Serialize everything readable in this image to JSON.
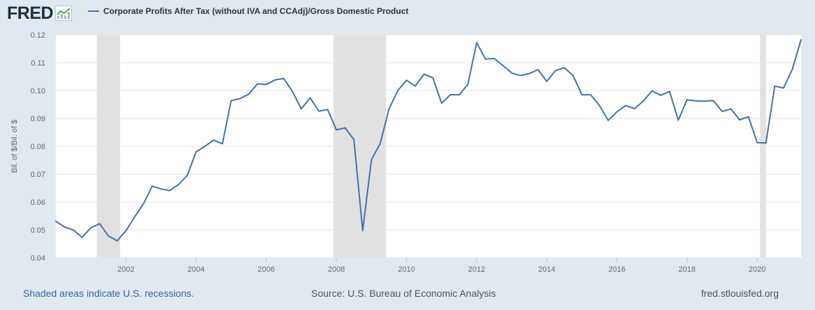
{
  "brand": {
    "logo_text": "FRED"
  },
  "legend": {
    "label": "Corporate Profits After Tax (without IVA and CCAdj)/Gross Domestic Product"
  },
  "footer": {
    "recession_note": "Shaded areas indicate U.S. recessions.",
    "source": "Source: U.S. Bureau of Economic Analysis",
    "site": "fred.stlouisfed.org"
  },
  "colors": {
    "line": "#4572a7",
    "recession": "#e1e1e1",
    "background": "#e1e9f0"
  },
  "chart_data": {
    "type": "line",
    "title": "Corporate Profits After Tax (without IVA and CCAdj)/Gross Domestic Product",
    "ylabel": "Bil. of $/Bil. of $",
    "xlabel": "",
    "xlim": [
      2000.0,
      2021.25
    ],
    "ylim": [
      0.04,
      0.12
    ],
    "yticks": [
      0.04,
      0.05,
      0.06,
      0.07,
      0.08,
      0.09,
      0.1,
      0.11,
      0.12
    ],
    "ytick_labels": [
      "0.04",
      "0.05",
      "0.06",
      "0.07",
      "0.08",
      "0.09",
      "0.10",
      "0.11",
      "0.12"
    ],
    "xticks": [
      2002,
      2004,
      2006,
      2008,
      2010,
      2012,
      2014,
      2016,
      2018,
      2020
    ],
    "xtick_labels": [
      "2002",
      "2004",
      "2006",
      "2008",
      "2010",
      "2012",
      "2014",
      "2016",
      "2018",
      "2020"
    ],
    "recessions": [
      [
        2001.167,
        2001.833
      ],
      [
        2007.917,
        2009.417
      ],
      [
        2020.083,
        2020.25
      ]
    ],
    "grid": true,
    "series": [
      {
        "name": "Corporate Profits After Tax (without IVA and CCAdj)/Gross Domestic Product",
        "x": [
          2000.0,
          2000.25,
          2000.5,
          2000.75,
          2001.0,
          2001.25,
          2001.5,
          2001.75,
          2002.0,
          2002.25,
          2002.5,
          2002.75,
          2003.0,
          2003.25,
          2003.5,
          2003.75,
          2004.0,
          2004.25,
          2004.5,
          2004.75,
          2005.0,
          2005.25,
          2005.5,
          2005.75,
          2006.0,
          2006.25,
          2006.5,
          2006.75,
          2007.0,
          2007.25,
          2007.5,
          2007.75,
          2008.0,
          2008.25,
          2008.5,
          2008.75,
          2009.0,
          2009.25,
          2009.5,
          2009.75,
          2010.0,
          2010.25,
          2010.5,
          2010.75,
          2011.0,
          2011.25,
          2011.5,
          2011.75,
          2012.0,
          2012.25,
          2012.5,
          2012.75,
          2013.0,
          2013.25,
          2013.5,
          2013.75,
          2014.0,
          2014.25,
          2014.5,
          2014.75,
          2015.0,
          2015.25,
          2015.5,
          2015.75,
          2016.0,
          2016.25,
          2016.5,
          2016.75,
          2017.0,
          2017.25,
          2017.5,
          2017.75,
          2018.0,
          2018.25,
          2018.5,
          2018.75,
          2019.0,
          2019.25,
          2019.5,
          2019.75,
          2020.0,
          2020.25,
          2020.5,
          2020.75,
          2021.0,
          2021.25
        ],
        "values": [
          0.0531,
          0.051,
          0.05,
          0.0473,
          0.0508,
          0.0522,
          0.0478,
          0.0461,
          0.0497,
          0.0547,
          0.0594,
          0.0657,
          0.0647,
          0.0641,
          0.0663,
          0.0696,
          0.078,
          0.08,
          0.0822,
          0.0809,
          0.0964,
          0.0971,
          0.0987,
          0.1024,
          0.1022,
          0.1038,
          0.1043,
          0.0996,
          0.0934,
          0.0974,
          0.0926,
          0.0932,
          0.0859,
          0.0866,
          0.0824,
          0.0497,
          0.0752,
          0.081,
          0.0934,
          0.1,
          0.1037,
          0.1016,
          0.1059,
          0.1046,
          0.0955,
          0.0985,
          0.0985,
          0.1022,
          0.1172,
          0.1113,
          0.1115,
          0.109,
          0.1063,
          0.1054,
          0.1061,
          0.1075,
          0.1033,
          0.1072,
          0.1082,
          0.1054,
          0.0985,
          0.0985,
          0.0947,
          0.0893,
          0.0924,
          0.0946,
          0.0935,
          0.0962,
          0.0999,
          0.0983,
          0.0997,
          0.0894,
          0.0967,
          0.0963,
          0.0962,
          0.0964,
          0.0925,
          0.0934,
          0.0895,
          0.0906,
          0.0813,
          0.0812,
          0.1016,
          0.1009,
          0.1076,
          0.1182
        ]
      }
    ]
  }
}
